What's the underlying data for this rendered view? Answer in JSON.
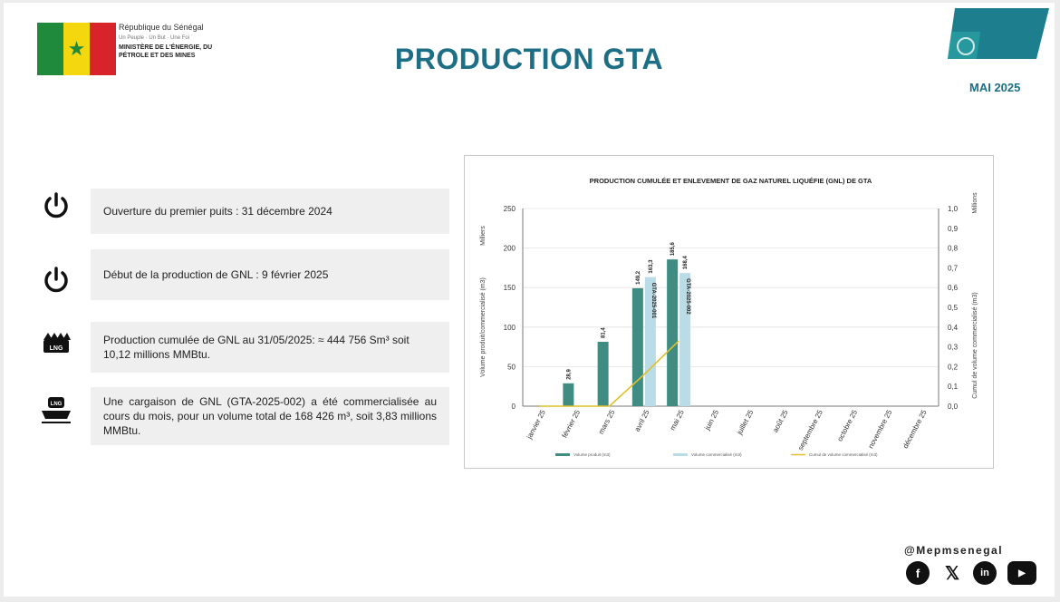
{
  "header": {
    "republic": "République du Sénégal",
    "motto": "Un Peuple · Un But · Une Foi",
    "ministry": "MINISTÈRE DE L'ÉNERGIE, DU PÉTROLE ET DES MINES",
    "title": "PRODUCTION GTA",
    "date": "MAI 2025"
  },
  "info": [
    {
      "icon": "power-icon",
      "text": "Ouverture du premier puits : 31 décembre 2024"
    },
    {
      "icon": "power-icon",
      "text": "Début de la production de GNL : 9 février 2025"
    },
    {
      "icon": "lng-tank-icon",
      "text": "Production cumulée de GNL au 31/05/2025: ≈ 444 756 Sm³ soit 10,12 millions MMBtu."
    },
    {
      "icon": "lng-ship-icon",
      "text": "Une cargaison de GNL (GTA-2025-002) a été commercialisée au cours du mois, pour un volume total de 168 426 m³, soit 3,83 millions MMBtu."
    }
  ],
  "chart_data": {
    "type": "bar",
    "title": "PRODUCTION CUMULÉE ET ENLEVEMENT DE GAZ NATUREL LIQUÉFIE (GNL) DE GTA",
    "categories": [
      "janvier 25",
      "février 25",
      "mars 25",
      "avril 25",
      "mai 25",
      "juin 25",
      "juillet 25",
      "août 25",
      "septembre 25",
      "octobre 25",
      "novembre 25",
      "décembre 25"
    ],
    "ylabel": "Volume produit/commercialisé (m3)",
    "ylabel_unit": "Milliers",
    "ylim": [
      0,
      250
    ],
    "yticks": [
      0,
      50,
      100,
      150,
      200,
      250
    ],
    "y2label": "Cumul de volume commercialisé (m3)",
    "y2label_unit": "Millions",
    "y2lim": [
      0,
      1.0
    ],
    "y2ticks": [
      "0,0",
      "0,1",
      "0,2",
      "0,3",
      "0,4",
      "0,5",
      "0,6",
      "0,7",
      "0,8",
      "0,9",
      "1,0"
    ],
    "series": [
      {
        "name": "Volume produit (m3)",
        "kind": "bar",
        "color": "#3f8c82",
        "values": [
          null,
          28.9,
          81.4,
          149.2,
          185.6,
          null,
          null,
          null,
          null,
          null,
          null,
          null
        ],
        "labels": [
          "",
          "28,9",
          "81,4",
          "149,2",
          "185,6",
          "",
          "",
          "",
          "",
          "",
          "",
          ""
        ]
      },
      {
        "name": "Volume commercialisé (m3)",
        "kind": "bar",
        "color": "#b9dce6",
        "values": [
          null,
          null,
          null,
          163.3,
          168.4,
          null,
          null,
          null,
          null,
          null,
          null,
          null
        ],
        "labels": [
          "",
          "",
          "",
          "163,3",
          "168,4",
          "",
          "",
          "",
          "",
          "",
          "",
          ""
        ],
        "annotations": [
          "",
          "",
          "",
          "GTA-2025-001",
          "GTA-2025-002",
          "",
          "",
          "",
          "",
          "",
          "",
          ""
        ]
      },
      {
        "name": "Cumul de volume commercialisé (m3)",
        "kind": "line",
        "axis": "right",
        "color": "#e0c02b",
        "values": [
          0,
          0,
          0,
          0.16,
          0.33,
          null,
          null,
          null,
          null,
          null,
          null,
          null
        ]
      }
    ],
    "legend_position": "bottom",
    "grid": true
  },
  "social": {
    "handle": "@Mepmsenegal",
    "networks": [
      "facebook-icon",
      "x-icon",
      "linkedin-icon",
      "youtube-icon"
    ]
  }
}
